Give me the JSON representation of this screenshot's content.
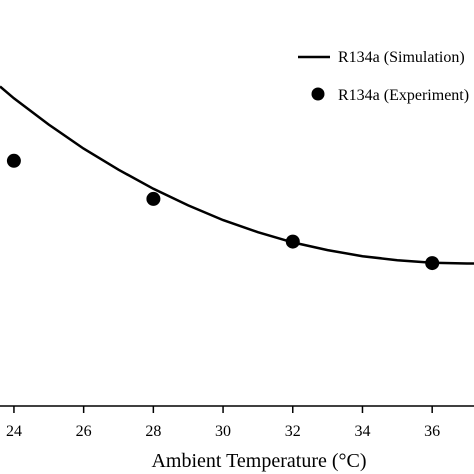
{
  "chart_data": {
    "type": "scatter",
    "xlabel": "Ambient Temperature (°C)",
    "ylabel": "",
    "title": "",
    "xticks": [
      24,
      26,
      28,
      30,
      32,
      34,
      36
    ],
    "xlim": [
      23.6,
      37.2
    ],
    "ylim": [
      0,
      1
    ],
    "grid": false,
    "legend_position": "top-right",
    "series": [
      {
        "name": "R134a (Simulation)",
        "kind": "line",
        "color": "#000000",
        "x": [
          23.6,
          24,
          25,
          26,
          27,
          28,
          29,
          30,
          31,
          32,
          33,
          34,
          35,
          36,
          37,
          37.2
        ],
        "y": [
          0.787,
          0.758,
          0.693,
          0.634,
          0.582,
          0.535,
          0.494,
          0.458,
          0.428,
          0.403,
          0.384,
          0.369,
          0.359,
          0.353,
          0.351,
          0.351
        ]
      },
      {
        "name": "R134a (Experiment)",
        "kind": "scatter",
        "color": "#000000",
        "x": [
          24,
          28,
          32,
          36
        ],
        "y": [
          0.604,
          0.51,
          0.405,
          0.352
        ]
      }
    ]
  }
}
